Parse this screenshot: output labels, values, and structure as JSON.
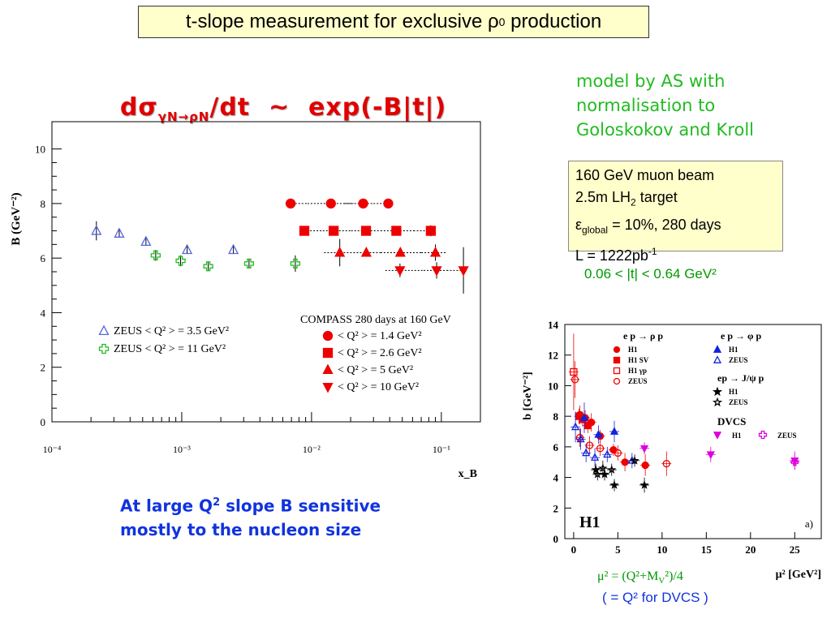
{
  "slide": {
    "title": "t-slope measurement for exclusive ρ",
    "title_sup": "0",
    "title_tail": " production",
    "formula_prefix": "dσ",
    "formula_sub": "γN→ρN",
    "formula_suffix": "/dt  ~  exp(-B|t|)",
    "model_note": [
      "model by AS with",
      "normalisation to",
      "Goloskokov and Kroll"
    ],
    "info_lines": {
      "beam": "160 GeV muon beam",
      "target_prefix": "2.5m LH",
      "target_sub": "2",
      "target_suffix": " target",
      "eff_symbol": "ε",
      "eff_sub": "global",
      "eff_suffix": " = 10%, 280 days",
      "lumi_prefix": "L = 1222pb",
      "lumi_sup": "-1"
    },
    "t_range": "0.06 < |t| < 0.64 GeV²",
    "conclusion_a": "At large Q",
    "conclusion_sup": "2",
    "conclusion_b": " slope B sensitive",
    "conclusion_c": "mostly to the nucleon size",
    "mu_definition": "μ² = (Q²+M",
    "mu_definition_sub": "V",
    "mu_definition_tail": "²)/4",
    "mu_note": "( = Q² for DVCS )"
  },
  "chart_data": [
    {
      "type": "scatter",
      "ylabel": "B (GeV⁻²)",
      "xlabel": "x_B",
      "x_scale": "log",
      "xlim": [
        0.0001,
        0.2
      ],
      "ylim": [
        0,
        11
      ],
      "x_ticks": [
        "10⁻⁴",
        "10⁻³",
        "10⁻²",
        "10⁻¹"
      ],
      "y_ticks": [
        "0",
        "2",
        "4",
        "6",
        "8",
        "10"
      ],
      "legend_left": [
        "ZEUS  < Q² > = 3.5 GeV²",
        "ZEUS  < Q² > = 11 GeV²"
      ],
      "legend_right_title": "COMPASS  280 days at 160 GeV",
      "legend_right": [
        "< Q² > = 1.4 GeV²",
        "< Q² > = 2.6 GeV²",
        "< Q² > = 5 GeV²",
        "< Q² > = 10 GeV²"
      ],
      "series": [
        {
          "name": "ZEUS  < Q² > = 3.5 GeV²",
          "marker": "triangle-up-open",
          "color": "#5566dd",
          "points": [
            {
              "x": 0.00022,
              "y": 7.0,
              "e": 0.35
            },
            {
              "x": 0.00033,
              "y": 6.9,
              "e": 0.15
            },
            {
              "x": 0.00053,
              "y": 6.6,
              "e": 0.15
            },
            {
              "x": 0.0011,
              "y": 6.3,
              "e": 0.15
            },
            {
              "x": 0.0025,
              "y": 6.3,
              "e": 0.15
            }
          ]
        },
        {
          "name": "ZEUS  < Q² > = 11 GeV²",
          "marker": "cross-open",
          "color": "#22bb22",
          "points": [
            {
              "x": 0.00063,
              "y": 6.1,
              "e": 0.2
            },
            {
              "x": 0.00098,
              "y": 5.9,
              "e": 0.2
            },
            {
              "x": 0.0016,
              "y": 5.7,
              "e": 0.15
            },
            {
              "x": 0.0033,
              "y": 5.8,
              "e": 0.15
            },
            {
              "x": 0.0075,
              "y": 5.8,
              "e": 0.3
            }
          ]
        },
        {
          "name": "< Q² > = 1.4 GeV²",
          "marker": "circle",
          "color": "#ee0000",
          "points": [
            {
              "x": 0.0069,
              "y": 8.0,
              "e": 0.1,
              "xlo": 0.0063,
              "xhi": 0.0093
            },
            {
              "x": 0.0141,
              "y": 8.0,
              "e": 0.1,
              "xlo": 0.0093,
              "xhi": 0.021
            },
            {
              "x": 0.025,
              "y": 8.0,
              "e": 0.1,
              "xlo": 0.018,
              "xhi": 0.03
            },
            {
              "x": 0.039,
              "y": 8.0,
              "e": 0.1,
              "xlo": 0.03,
              "xhi": 0.042
            }
          ]
        },
        {
          "name": "< Q² > = 2.6 GeV²",
          "marker": "square",
          "color": "#ee0000",
          "points": [
            {
              "x": 0.0088,
              "y": 7.0,
              "e": 0.1,
              "xlo": 0.0082,
              "xhi": 0.0122
            },
            {
              "x": 0.0148,
              "y": 7.0,
              "e": 0.1,
              "xlo": 0.0122,
              "xhi": 0.0202
            },
            {
              "x": 0.0263,
              "y": 7.0,
              "e": 0.1,
              "xlo": 0.0202,
              "xhi": 0.034
            },
            {
              "x": 0.045,
              "y": 7.0,
              "e": 0.1,
              "xlo": 0.034,
              "xhi": 0.061
            },
            {
              "x": 0.083,
              "y": 7.0,
              "e": 0.2,
              "xlo": 0.061,
              "xhi": 0.091
            }
          ]
        },
        {
          "name": "< Q² > = 5 GeV²",
          "marker": "triangle-up",
          "color": "#ee0000",
          "points": [
            {
              "x": 0.0165,
              "y": 6.2,
              "e": 0.5,
              "xlo": 0.0125,
              "xhi": 0.021
            },
            {
              "x": 0.0264,
              "y": 6.2,
              "e": 0.15,
              "xlo": 0.021,
              "xhi": 0.034
            },
            {
              "x": 0.0483,
              "y": 6.2,
              "e": 0.15,
              "xlo": 0.034,
              "xhi": 0.07
            },
            {
              "x": 0.09,
              "y": 6.2,
              "e": 0.3,
              "xlo": 0.07,
              "xhi": 0.11
            }
          ]
        },
        {
          "name": "< Q² > = 10 GeV²",
          "marker": "triangle-down",
          "color": "#ee0000",
          "points": [
            {
              "x": 0.048,
              "y": 5.55,
              "e": 0.25,
              "xlo": 0.037,
              "xhi": 0.073
            },
            {
              "x": 0.092,
              "y": 5.55,
              "e": 0.3,
              "xlo": 0.073,
              "xhi": 0.11
            },
            {
              "x": 0.148,
              "y": 5.55,
              "e": 0.85,
              "xlo": 0.11,
              "xhi": 0.155
            }
          ]
        }
      ]
    },
    {
      "type": "scatter",
      "ylabel": "b [GeV⁻²]",
      "xlabel": "μ² [GeV²]",
      "xlim": [
        -1,
        28
      ],
      "ylim": [
        0,
        14
      ],
      "x_ticks": [
        0,
        5,
        10,
        15,
        20,
        25
      ],
      "y_ticks": [
        0,
        2,
        4,
        6,
        8,
        10,
        12,
        14
      ],
      "watermark_label": "H1",
      "panel_label": "a)",
      "legend_groups": {
        "rho_title": "e p → ρ p",
        "rho_items": [
          "H1",
          "H1 SV",
          "H1 γp",
          "ZEUS"
        ],
        "phi_title": "e p → φ p",
        "phi_items": [
          "H1",
          "ZEUS"
        ],
        "jpsi_title": "ep → J/ψ p",
        "jpsi_items": [
          "H1",
          "ZEUS"
        ],
        "dvcs_title": "DVCS",
        "dvcs_items": [
          "H1",
          "ZEUS"
        ]
      },
      "series": [
        {
          "name": "ρ H1",
          "marker": "circle",
          "color": "#ee0000",
          "points": [
            {
              "x": 0.7,
              "y": 8.1,
              "e": 0.6
            },
            {
              "x": 1.3,
              "y": 7.9,
              "e": 0.5
            },
            {
              "x": 2.0,
              "y": 7.6,
              "e": 0.6
            },
            {
              "x": 3.0,
              "y": 6.7,
              "e": 0.4
            },
            {
              "x": 4.5,
              "y": 5.8,
              "e": 0.4
            },
            {
              "x": 5.8,
              "y": 5.0,
              "e": 0.6
            },
            {
              "x": 8.1,
              "y": 4.8,
              "e": 0.7
            }
          ]
        },
        {
          "name": "ρ H1 SV",
          "marker": "square",
          "color": "#ee0000",
          "points": [
            {
              "x": 0.6,
              "y": 8.0,
              "e": 0.5
            },
            {
              "x": 1.0,
              "y": 7.8,
              "e": 0.5
            },
            {
              "x": 1.6,
              "y": 7.4,
              "e": 0.5
            }
          ]
        },
        {
          "name": "ρ H1 γp",
          "marker": "square-open",
          "color": "#ee0000",
          "points": [
            {
              "x": 0.0,
              "y": 10.9,
              "e": 2.5
            }
          ]
        },
        {
          "name": "ρ ZEUS",
          "marker": "circle-open",
          "color": "#ee0000",
          "points": [
            {
              "x": 0.15,
              "y": 10.4,
              "e": 1.2
            },
            {
              "x": 0.7,
              "y": 6.6,
              "e": 0.6
            },
            {
              "x": 1.8,
              "y": 6.1,
              "e": 0.6
            },
            {
              "x": 3.0,
              "y": 5.9,
              "e": 0.5
            },
            {
              "x": 5.0,
              "y": 5.6,
              "e": 0.5
            },
            {
              "x": 10.5,
              "y": 4.9,
              "e": 0.8
            }
          ]
        },
        {
          "name": "φ H1",
          "marker": "triangle-up",
          "color": "#1122dd",
          "points": [
            {
              "x": 1.2,
              "y": 7.9,
              "e": 1.0
            },
            {
              "x": 2.8,
              "y": 6.8,
              "e": 0.6
            },
            {
              "x": 4.6,
              "y": 7.0,
              "e": 0.7
            }
          ]
        },
        {
          "name": "φ ZEUS",
          "marker": "triangle-up-open",
          "color": "#1122dd",
          "points": [
            {
              "x": 0.2,
              "y": 7.3,
              "e": 1.0
            },
            {
              "x": 0.8,
              "y": 6.5,
              "e": 0.7
            },
            {
              "x": 1.4,
              "y": 5.6,
              "e": 0.6
            },
            {
              "x": 2.4,
              "y": 5.3,
              "e": 0.6
            },
            {
              "x": 3.8,
              "y": 5.5,
              "e": 0.5
            },
            {
              "x": 6.6,
              "y": 5.1,
              "e": 0.5
            }
          ]
        },
        {
          "name": "J/ψ H1",
          "marker": "star",
          "color": "#000000",
          "points": [
            {
              "x": 2.5,
              "y": 4.5,
              "e": 0.4
            },
            {
              "x": 3.5,
              "y": 4.2,
              "e": 0.4
            },
            {
              "x": 4.6,
              "y": 3.5,
              "e": 0.4
            },
            {
              "x": 8.0,
              "y": 3.5,
              "e": 0.5
            }
          ]
        },
        {
          "name": "J/ψ ZEUS",
          "marker": "star-open",
          "color": "#000000",
          "points": [
            {
              "x": 2.7,
              "y": 4.2,
              "e": 0.4
            },
            {
              "x": 3.3,
              "y": 4.6,
              "e": 0.5
            },
            {
              "x": 4.3,
              "y": 4.5,
              "e": 0.4
            },
            {
              "x": 6.9,
              "y": 5.1,
              "e": 0.4
            }
          ]
        },
        {
          "name": "DVCS H1",
          "marker": "triangle-down",
          "color": "#dd00dd",
          "points": [
            {
              "x": 8.0,
              "y": 5.9,
              "e": 0.4
            },
            {
              "x": 15.5,
              "y": 5.5,
              "e": 0.5
            },
            {
              "x": 25.0,
              "y": 5.1,
              "e": 0.6
            }
          ]
        },
        {
          "name": "DVCS ZEUS",
          "marker": "cross-open",
          "color": "#dd00dd",
          "points": [
            {
              "x": 25.0,
              "y": 5.0,
              "e": 0.5
            }
          ]
        }
      ]
    }
  ]
}
